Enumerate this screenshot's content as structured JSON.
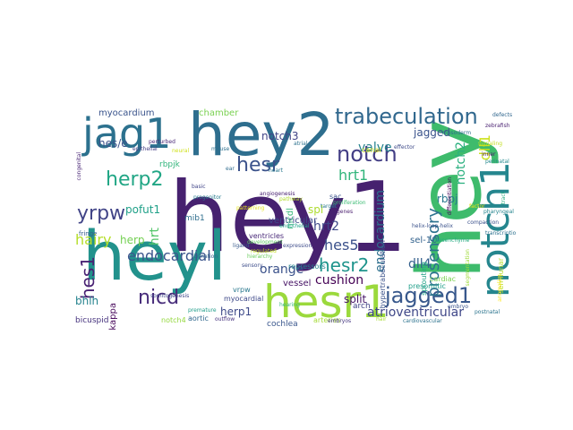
{
  "words": [
    {
      "text": "hey1",
      "color": "#46216f"
    },
    {
      "text": "hey",
      "color": "#3ebb6c"
    },
    {
      "text": "hey2",
      "color": "#2e6e8e"
    },
    {
      "text": "heyl",
      "color": "#22928c"
    },
    {
      "text": "hesr1",
      "color": "#9bd93c"
    },
    {
      "text": "jag1",
      "color": "#2c718e"
    },
    {
      "text": "notch1",
      "color": "#25868e"
    },
    {
      "text": "trabeculation",
      "color": "#31688e"
    },
    {
      "text": "notch",
      "color": "#433e85"
    },
    {
      "text": "jagged1",
      "color": "#38588c"
    },
    {
      "text": "hesr",
      "color": "#3b528b"
    },
    {
      "text": "herp2",
      "color": "#21a685"
    },
    {
      "text": "yrpw",
      "color": "#414487"
    },
    {
      "text": "nicd",
      "color": "#472c7a"
    },
    {
      "text": "hes1",
      "color": "#482173"
    },
    {
      "text": "hesr2",
      "color": "#1f948c"
    },
    {
      "text": "hrt1",
      "color": "#31b57b"
    },
    {
      "text": "endocardial",
      "color": "#3a548c"
    },
    {
      "text": "hes5",
      "color": "#3b518b"
    },
    {
      "text": "prosensory",
      "color": "#2c728e"
    },
    {
      "text": "notch2",
      "color": "#2ab07f"
    },
    {
      "text": "hairy",
      "color": "#b5de2b"
    },
    {
      "text": "dll1",
      "color": "#cde11d"
    },
    {
      "text": "hrt2",
      "color": "#3e4989"
    },
    {
      "text": "valve",
      "color": "#26828e"
    },
    {
      "text": "jagged",
      "color": "#3a538b"
    },
    {
      "text": "endocardium",
      "color": "#2e6f8e"
    },
    {
      "text": "orange",
      "color": "#3b528b"
    },
    {
      "text": "cushion",
      "color": "#440154"
    },
    {
      "text": "atrioventricular",
      "color": "#3f4788"
    },
    {
      "text": "herp1",
      "color": "#3e4a89"
    },
    {
      "text": "dll4",
      "color": "#35608d"
    },
    {
      "text": "hrt",
      "color": "#52c569"
    },
    {
      "text": "rbpj",
      "color": "#2a788e"
    },
    {
      "text": "hes/e",
      "color": "#3b518b"
    },
    {
      "text": "notch3",
      "color": "#414487"
    },
    {
      "text": "spl",
      "color": "#addc30"
    },
    {
      "text": "split",
      "color": "#481769"
    },
    {
      "text": "bhlh",
      "color": "#25838e"
    },
    {
      "text": "pofut1",
      "color": "#1fa088"
    },
    {
      "text": "herp",
      "color": "#75d054"
    },
    {
      "text": "sel-10",
      "color": "#33628d"
    },
    {
      "text": "myocardium",
      "color": "#3a548c"
    },
    {
      "text": "rbpjkappa",
      "color": "#450559"
    },
    {
      "text": "chamber",
      "color": "#7ad151"
    },
    {
      "text": "ventricular",
      "color": "#3e4989"
    },
    {
      "text": "mib1",
      "color": "#2e6e8e"
    },
    {
      "text": "rbpjk",
      "color": "#31b57b"
    },
    {
      "text": "vessel",
      "color": "#471365"
    },
    {
      "text": "repressors",
      "color": "#26828e"
    },
    {
      "text": "hypertrabeculation",
      "color": "#3b528b"
    },
    {
      "text": "arch",
      "color": "#414487"
    },
    {
      "text": "cardiac",
      "color": "#7ad151"
    },
    {
      "text": "presomitic",
      "color": "#1f9e89"
    },
    {
      "text": "bicuspid",
      "color": "#46337e"
    },
    {
      "text": "cochlea",
      "color": "#39568c"
    },
    {
      "text": "arteries",
      "color": "#a5db36"
    },
    {
      "text": "canal",
      "color": "#d8e219"
    },
    {
      "text": "fringe",
      "color": "#365c8d"
    },
    {
      "text": "myocardial",
      "color": "#3e4989"
    },
    {
      "text": "aortic",
      "color": "#31688e"
    },
    {
      "text": "notch4",
      "color": "#95d840"
    },
    {
      "text": "nicdl",
      "color": "#35b779"
    },
    {
      "text": "sac",
      "color": "#3b528b"
    },
    {
      "text": "vrpw",
      "color": "#2a788e"
    },
    {
      "text": "ventricles",
      "color": "#482878"
    },
    {
      "text": "sprouting",
      "color": "#20a386"
    },
    {
      "text": "semilunar",
      "color": "#b8de29"
    },
    {
      "text": "effector",
      "color": "#3e4a89"
    },
    {
      "text": "ligand",
      "color": "#38598c"
    },
    {
      "text": "mouse",
      "color": "#2d708e"
    },
    {
      "text": "congenital",
      "color": "#482475"
    },
    {
      "text": "premature",
      "color": "#1e9c89"
    },
    {
      "text": "atrial",
      "color": "#2c718e"
    },
    {
      "text": "signaling",
      "color": "#c2df23"
    },
    {
      "text": "zebrafish",
      "color": "#481f70"
    },
    {
      "text": "somitogenesis",
      "color": "#3f4889"
    },
    {
      "text": "development",
      "color": "#5ec962"
    },
    {
      "text": "mesoderm",
      "color": "#2f6c8e"
    },
    {
      "text": "differentiation",
      "color": "#450457"
    },
    {
      "text": "heart",
      "color": "#2a778e"
    },
    {
      "text": "pathway",
      "color": "#b2dd2d"
    },
    {
      "text": "basic",
      "color": "#404588"
    },
    {
      "text": "proliferation",
      "color": "#3dbc74"
    },
    {
      "text": "embryo",
      "color": "#3a548c"
    },
    {
      "text": "segmentation",
      "color": "#9fda3a"
    },
    {
      "text": "angiogenesis",
      "color": "#482071"
    },
    {
      "text": "transcription",
      "color": "#2d718e"
    },
    {
      "text": "factor",
      "color": "#e2e418"
    },
    {
      "text": "helix-loop-helix",
      "color": "#3b528b"
    },
    {
      "text": "pharyngeal",
      "color": "#25858e"
    },
    {
      "text": "cardiovascular",
      "color": "#2c728e"
    },
    {
      "text": "outflow",
      "color": "#46327e"
    },
    {
      "text": "tract",
      "color": "#25ac82"
    },
    {
      "text": "epithelial",
      "color": "#433d84"
    },
    {
      "text": "neural",
      "color": "#d0e11c"
    },
    {
      "text": "progenitor",
      "color": "#287c8e"
    },
    {
      "text": "hearing",
      "color": "#35b779"
    },
    {
      "text": "inner",
      "color": "#481668"
    },
    {
      "text": "ear",
      "color": "#2f6b8e"
    },
    {
      "text": "hair",
      "color": "#a8db34"
    },
    {
      "text": "sensory",
      "color": "#3d4d8a"
    },
    {
      "text": "endothelial",
      "color": "#1fa287"
    },
    {
      "text": "defects",
      "color": "#31678e"
    },
    {
      "text": "perturbed",
      "color": "#482576"
    },
    {
      "text": "regulated",
      "color": "#c5e021"
    },
    {
      "text": "expression",
      "color": "#3e4c8a"
    },
    {
      "text": "target",
      "color": "#2a788e"
    },
    {
      "text": "genes",
      "color": "#481b6d"
    },
    {
      "text": "hierarchy",
      "color": "#69cd5b"
    },
    {
      "text": "formation",
      "color": "#33638d"
    },
    {
      "text": "patterning",
      "color": "#e5e419"
    },
    {
      "text": "compaction",
      "color": "#3b518b"
    },
    {
      "text": "perinatal",
      "color": "#23898e"
    },
    {
      "text": "postnatal",
      "color": "#2b748e"
    },
    {
      "text": "anomalies",
      "color": "#fde725"
    },
    {
      "text": "embryos",
      "color": "#453781"
    },
    {
      "text": "mesenchyme",
      "color": "#25ab82"
    }
  ]
}
